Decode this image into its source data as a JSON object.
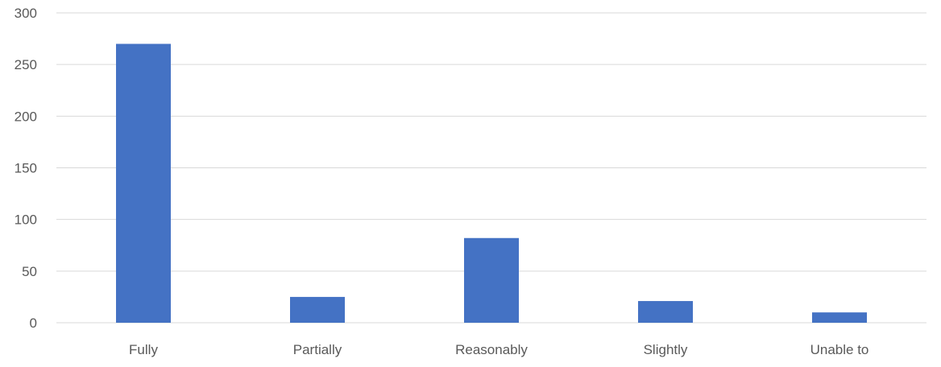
{
  "chart_data": {
    "type": "bar",
    "categories": [
      "Fully",
      "Partially",
      "Reasonably",
      "Slightly",
      "Unable to"
    ],
    "values": [
      270,
      25,
      82,
      21,
      10
    ],
    "ylim": [
      0,
      300
    ],
    "yticks": [
      0,
      50,
      100,
      150,
      200,
      250,
      300
    ],
    "grid": true,
    "bar_color": "#4472C4",
    "grid_color": "#D9D9D9",
    "tick_label_color": "#595959"
  }
}
